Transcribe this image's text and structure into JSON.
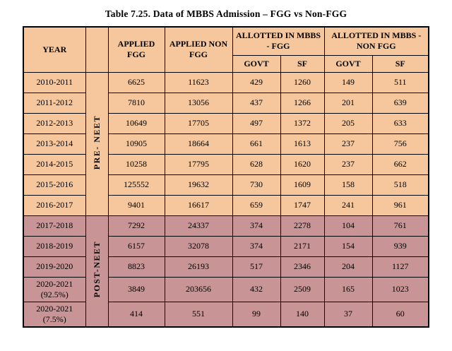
{
  "title": "Table 7.25. Data of MBBS Admission – FGG vs Non-FGG",
  "colors": {
    "pre_neet_bg": "#f6c79d",
    "post_neet_bg": "#c99495",
    "border": "#000000",
    "page_bg": "#ffffff"
  },
  "table": {
    "headers": {
      "year": "YEAR",
      "era": "",
      "applied_fgg": "APPLIED FGG",
      "applied_non_fgg": "APPLIED NON FGG",
      "allotted_fgg": "ALLOTTED IN MBBS - FGG",
      "allotted_non_fgg": "ALLOTTED IN MBBS - NON FGG",
      "govt": "GOVT",
      "sf": "SF"
    },
    "groups": [
      {
        "era": "PRE- NEET",
        "style": "pre",
        "rows": [
          {
            "year": "2010-2011",
            "values": [
              "6625",
              "11623",
              "429",
              "1260",
              "149",
              "511"
            ]
          },
          {
            "year": "2011-2012",
            "values": [
              "7810",
              "13056",
              "437",
              "1266",
              "201",
              "639"
            ]
          },
          {
            "year": "2012-2013",
            "values": [
              "10649",
              "17705",
              "497",
              "1372",
              "205",
              "633"
            ]
          },
          {
            "year": "2013-2014",
            "values": [
              "10905",
              "18664",
              "661",
              "1613",
              "237",
              "756"
            ]
          },
          {
            "year": "2014-2015",
            "values": [
              "10258",
              "17795",
              "628",
              "1620",
              "237",
              "662"
            ]
          },
          {
            "year": "2015-2016",
            "values": [
              "125552",
              "19632",
              "730",
              "1609",
              "158",
              "518"
            ]
          },
          {
            "year": "2016-2017",
            "values": [
              "9401",
              "16617",
              "659",
              "1747",
              "241",
              "961"
            ]
          }
        ]
      },
      {
        "era": "POST-NEET",
        "style": "post",
        "rows": [
          {
            "year": "2017-2018",
            "values": [
              "7292",
              "24337",
              "374",
              "2278",
              "104",
              "761"
            ]
          },
          {
            "year": "2018-2019",
            "values": [
              "6157",
              "32078",
              "374",
              "2171",
              "154",
              "939"
            ]
          },
          {
            "year": "2019-2020",
            "values": [
              "8823",
              "26193",
              "517",
              "2346",
              "204",
              "1127"
            ]
          },
          {
            "year": "2020-2021 (92.5%)",
            "values": [
              "3849",
              "203656",
              "432",
              "2509",
              "165",
              "1023"
            ]
          },
          {
            "year": "2020-2021 (7.5%)",
            "values": [
              "414",
              "551",
              "99",
              "140",
              "37",
              "60"
            ]
          }
        ]
      }
    ]
  }
}
